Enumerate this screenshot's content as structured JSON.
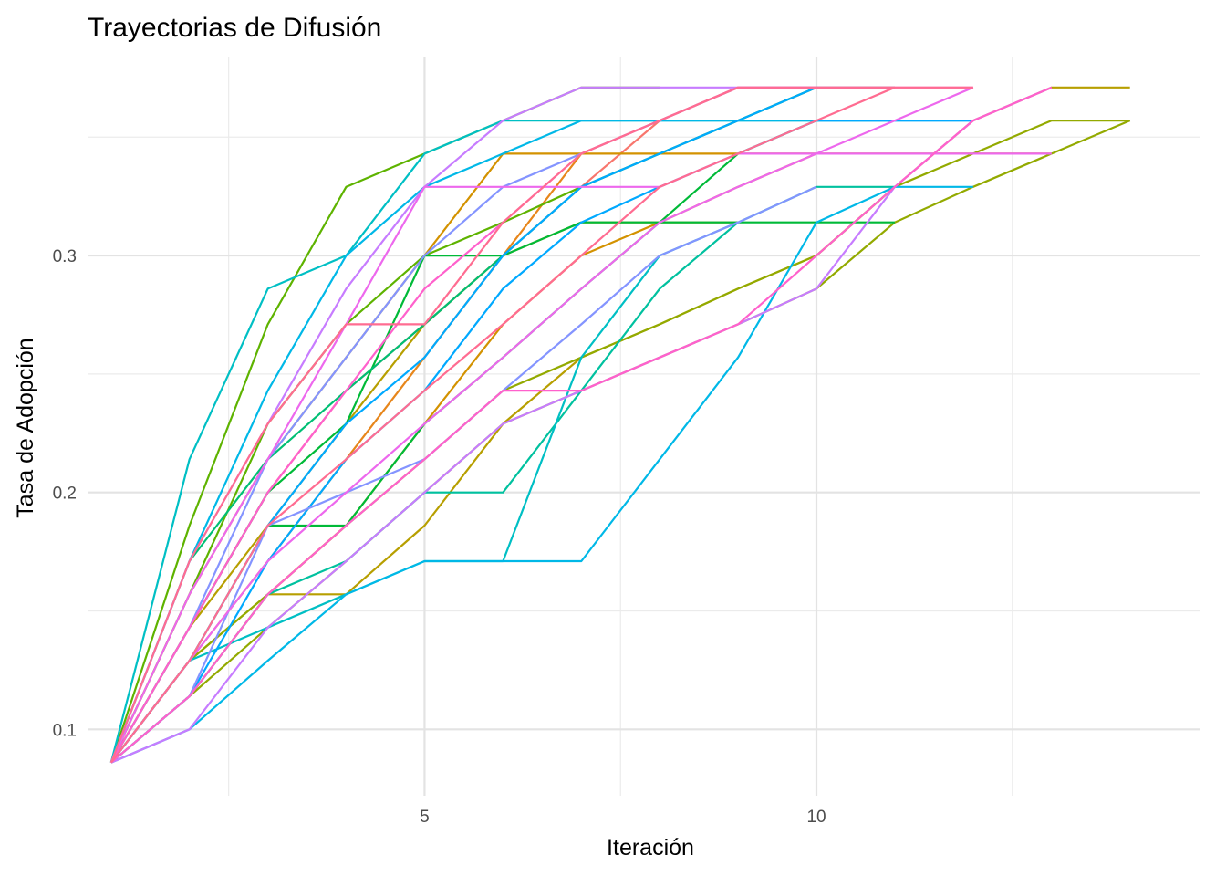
{
  "chart_data": {
    "type": "line",
    "title": "Trayectorias de Difusión",
    "xlabel": "Iteración",
    "ylabel": "Tasa de Adopción",
    "xlim": [
      0.7,
      14.9
    ],
    "ylim": [
      0.072,
      0.384
    ],
    "x_ticks": [
      5,
      10
    ],
    "x_tick_labels": [
      "5",
      "10"
    ],
    "x_minor_ticks": [
      2.5,
      7.5,
      12.5
    ],
    "y_ticks": [
      0.1,
      0.2,
      0.3
    ],
    "y_tick_labels": [
      "0.1",
      "0.2",
      "0.3"
    ],
    "y_minor_ticks": [
      0.15,
      0.25,
      0.35
    ],
    "grid": true,
    "legend": "none",
    "series": [
      {
        "color": "#F8766D",
        "x": [
          1,
          2,
          3,
          4,
          5,
          6,
          7,
          8,
          9,
          10,
          11
        ],
        "y": [
          0.086,
          0.143,
          0.2,
          0.243,
          0.271,
          0.3,
          0.329,
          0.357,
          0.371,
          0.371,
          0.371
        ]
      },
      {
        "color": "#E7861B",
        "x": [
          1,
          2,
          3,
          4,
          5,
          6,
          7,
          8,
          9,
          10
        ],
        "y": [
          0.086,
          0.129,
          0.171,
          0.214,
          0.257,
          0.3,
          0.343,
          0.357,
          0.371,
          0.371
        ]
      },
      {
        "color": "#D39200",
        "x": [
          1,
          2,
          3,
          4,
          5,
          6,
          7,
          8,
          9,
          10,
          11,
          12,
          13
        ],
        "y": [
          0.086,
          0.114,
          0.157,
          0.186,
          0.229,
          0.271,
          0.3,
          0.314,
          0.329,
          0.343,
          0.343,
          0.343,
          0.343
        ]
      },
      {
        "color": "#D39200",
        "x": [
          1,
          2,
          3,
          4,
          5,
          6,
          7,
          8,
          9,
          10
        ],
        "y": [
          0.086,
          0.157,
          0.214,
          0.257,
          0.3,
          0.343,
          0.343,
          0.343,
          0.343,
          0.343
        ]
      },
      {
        "color": "#B79F00",
        "x": [
          1,
          2,
          3,
          4,
          5,
          6,
          7,
          8,
          9
        ],
        "y": [
          0.086,
          0.143,
          0.186,
          0.229,
          0.271,
          0.3,
          0.314,
          0.314,
          0.314
        ]
      },
      {
        "color": "#B79F00",
        "x": [
          1,
          2,
          3,
          4,
          5,
          6,
          7,
          8,
          9,
          10,
          11,
          12,
          13,
          14
        ],
        "y": [
          0.086,
          0.129,
          0.157,
          0.157,
          0.186,
          0.229,
          0.257,
          0.271,
          0.286,
          0.3,
          0.329,
          0.357,
          0.371,
          0.371
        ]
      },
      {
        "color": "#93AA00",
        "x": [
          1,
          2,
          3,
          4,
          5,
          6,
          7,
          8,
          9,
          10,
          11,
          12,
          13,
          14
        ],
        "y": [
          0.086,
          0.114,
          0.143,
          0.171,
          0.2,
          0.229,
          0.243,
          0.257,
          0.271,
          0.286,
          0.314,
          0.329,
          0.343,
          0.357
        ]
      },
      {
        "color": "#93AA00",
        "x": [
          1,
          2,
          3,
          4,
          5,
          6,
          7,
          8,
          9,
          10,
          11,
          12,
          13,
          14
        ],
        "y": [
          0.086,
          0.129,
          0.157,
          0.186,
          0.214,
          0.243,
          0.257,
          0.271,
          0.286,
          0.3,
          0.329,
          0.343,
          0.357,
          0.357
        ]
      },
      {
        "color": "#5EB300",
        "x": [
          1,
          2,
          3,
          4,
          5,
          6,
          7,
          8
        ],
        "y": [
          0.086,
          0.186,
          0.271,
          0.329,
          0.343,
          0.357,
          0.371,
          0.371
        ]
      },
      {
        "color": "#5EB300",
        "x": [
          1,
          2,
          3,
          4,
          5,
          6,
          7,
          8,
          9,
          10,
          11
        ],
        "y": [
          0.086,
          0.157,
          0.229,
          0.271,
          0.3,
          0.314,
          0.329,
          0.343,
          0.357,
          0.371,
          0.371
        ]
      },
      {
        "color": "#00BA38",
        "x": [
          1,
          2,
          3,
          4,
          5,
          6,
          7,
          8,
          9,
          10
        ],
        "y": [
          0.086,
          0.129,
          0.186,
          0.186,
          0.229,
          0.257,
          0.286,
          0.314,
          0.343,
          0.357
        ]
      },
      {
        "color": "#00BA38",
        "x": [
          1,
          2,
          3,
          4,
          5,
          6,
          7,
          8,
          9,
          10,
          11
        ],
        "y": [
          0.086,
          0.143,
          0.2,
          0.229,
          0.3,
          0.3,
          0.314,
          0.314,
          0.314,
          0.314,
          0.314
        ]
      },
      {
        "color": "#00BF74",
        "x": [
          1,
          2,
          3,
          4,
          5,
          6,
          7,
          8,
          9,
          10
        ],
        "y": [
          0.086,
          0.171,
          0.214,
          0.243,
          0.271,
          0.3,
          0.329,
          0.343,
          0.357,
          0.371
        ]
      },
      {
        "color": "#00C19F",
        "x": [
          1,
          2,
          3,
          4,
          5,
          6,
          7,
          8,
          9,
          10,
          11
        ],
        "y": [
          0.086,
          0.114,
          0.157,
          0.171,
          0.2,
          0.2,
          0.243,
          0.286,
          0.314,
          0.329,
          0.329
        ]
      },
      {
        "color": "#00BFC4",
        "x": [
          1,
          2,
          3,
          4,
          5,
          6,
          7,
          8,
          9,
          10,
          11
        ],
        "y": [
          0.086,
          0.214,
          0.286,
          0.3,
          0.343,
          0.357,
          0.357,
          0.357,
          0.357,
          0.357,
          0.357
        ]
      },
      {
        "color": "#00BFC4",
        "x": [
          1,
          2,
          3,
          4,
          5,
          6,
          7,
          8,
          9
        ],
        "y": [
          0.086,
          0.129,
          0.143,
          0.157,
          0.171,
          0.171,
          0.257,
          0.3,
          0.314
        ]
      },
      {
        "color": "#00B8E7",
        "x": [
          1,
          2,
          3,
          4,
          5,
          6,
          7,
          8,
          9,
          10,
          11,
          12
        ],
        "y": [
          0.086,
          0.1,
          0.129,
          0.157,
          0.171,
          0.171,
          0.171,
          0.214,
          0.257,
          0.314,
          0.329,
          0.329
        ]
      },
      {
        "color": "#00B8E7",
        "x": [
          1,
          2,
          3,
          4,
          5,
          6,
          7,
          8,
          9,
          10,
          11,
          12
        ],
        "y": [
          0.086,
          0.171,
          0.243,
          0.3,
          0.329,
          0.343,
          0.357,
          0.357,
          0.357,
          0.357,
          0.357,
          0.357
        ]
      },
      {
        "color": "#00A9FF",
        "x": [
          1,
          2,
          3,
          4,
          5,
          6,
          7,
          8,
          9,
          10,
          11,
          12
        ],
        "y": [
          0.086,
          0.114,
          0.171,
          0.214,
          0.243,
          0.286,
          0.314,
          0.329,
          0.343,
          0.357,
          0.357,
          0.357
        ]
      },
      {
        "color": "#00A9FF",
        "x": [
          1,
          2,
          3,
          4,
          5,
          6,
          7,
          8,
          9,
          10
        ],
        "y": [
          0.086,
          0.129,
          0.186,
          0.229,
          0.257,
          0.3,
          0.329,
          0.343,
          0.357,
          0.371
        ]
      },
      {
        "color": "#8494FF",
        "x": [
          1,
          2,
          3,
          4,
          5,
          6,
          7,
          8,
          9,
          10
        ],
        "y": [
          0.086,
          0.114,
          0.186,
          0.2,
          0.214,
          0.243,
          0.271,
          0.3,
          0.314,
          0.329
        ]
      },
      {
        "color": "#8494FF",
        "x": [
          1,
          2,
          3,
          4,
          5,
          6,
          7,
          8,
          9,
          10,
          11
        ],
        "y": [
          0.086,
          0.143,
          0.214,
          0.257,
          0.3,
          0.329,
          0.343,
          0.357,
          0.371,
          0.371,
          0.371
        ]
      },
      {
        "color": "#C77CFF",
        "x": [
          1,
          2,
          3,
          4,
          5,
          6,
          7,
          8,
          9,
          10,
          11,
          12,
          13
        ],
        "y": [
          0.086,
          0.1,
          0.143,
          0.171,
          0.2,
          0.229,
          0.243,
          0.257,
          0.271,
          0.286,
          0.329,
          0.357,
          0.371
        ]
      },
      {
        "color": "#C77CFF",
        "x": [
          1,
          2,
          3,
          4,
          5,
          6,
          7,
          8,
          9,
          10
        ],
        "y": [
          0.086,
          0.171,
          0.229,
          0.286,
          0.329,
          0.357,
          0.371,
          0.371,
          0.371,
          0.371
        ]
      },
      {
        "color": "#ED68ED",
        "x": [
          1,
          2,
          3,
          4,
          5,
          6,
          7,
          8,
          9,
          10,
          11,
          12
        ],
        "y": [
          0.086,
          0.129,
          0.171,
          0.2,
          0.229,
          0.257,
          0.286,
          0.314,
          0.329,
          0.343,
          0.357,
          0.371
        ]
      },
      {
        "color": "#ED68ED",
        "x": [
          1,
          2,
          3,
          4,
          5,
          6,
          7,
          8,
          9,
          10,
          11,
          12,
          13
        ],
        "y": [
          0.086,
          0.157,
          0.214,
          0.271,
          0.329,
          0.329,
          0.329,
          0.329,
          0.343,
          0.343,
          0.343,
          0.343,
          0.343
        ]
      },
      {
        "color": "#FF61CC",
        "x": [
          1,
          2,
          3,
          4,
          5,
          6,
          7,
          8,
          9,
          10,
          11,
          12,
          13
        ],
        "y": [
          0.086,
          0.114,
          0.157,
          0.186,
          0.214,
          0.243,
          0.243,
          0.257,
          0.271,
          0.3,
          0.329,
          0.357,
          0.371
        ]
      },
      {
        "color": "#FF61CC",
        "x": [
          1,
          2,
          3,
          4,
          5,
          6,
          7,
          8,
          9,
          10,
          11,
          12
        ],
        "y": [
          0.086,
          0.143,
          0.2,
          0.243,
          0.286,
          0.314,
          0.343,
          0.357,
          0.371,
          0.371,
          0.371,
          0.371
        ]
      },
      {
        "color": "#FF6C91",
        "x": [
          1,
          2,
          3,
          4,
          5,
          6,
          7,
          8,
          9,
          10,
          11,
          12
        ],
        "y": [
          0.086,
          0.129,
          0.186,
          0.214,
          0.243,
          0.271,
          0.3,
          0.329,
          0.343,
          0.357,
          0.371,
          0.371
        ]
      },
      {
        "color": "#FF6C91",
        "x": [
          1,
          2,
          3,
          4,
          5,
          6,
          7,
          8,
          9,
          10,
          11
        ],
        "y": [
          0.086,
          0.171,
          0.229,
          0.271,
          0.271,
          0.314,
          0.343,
          0.357,
          0.371,
          0.371,
          0.371
        ]
      }
    ]
  }
}
